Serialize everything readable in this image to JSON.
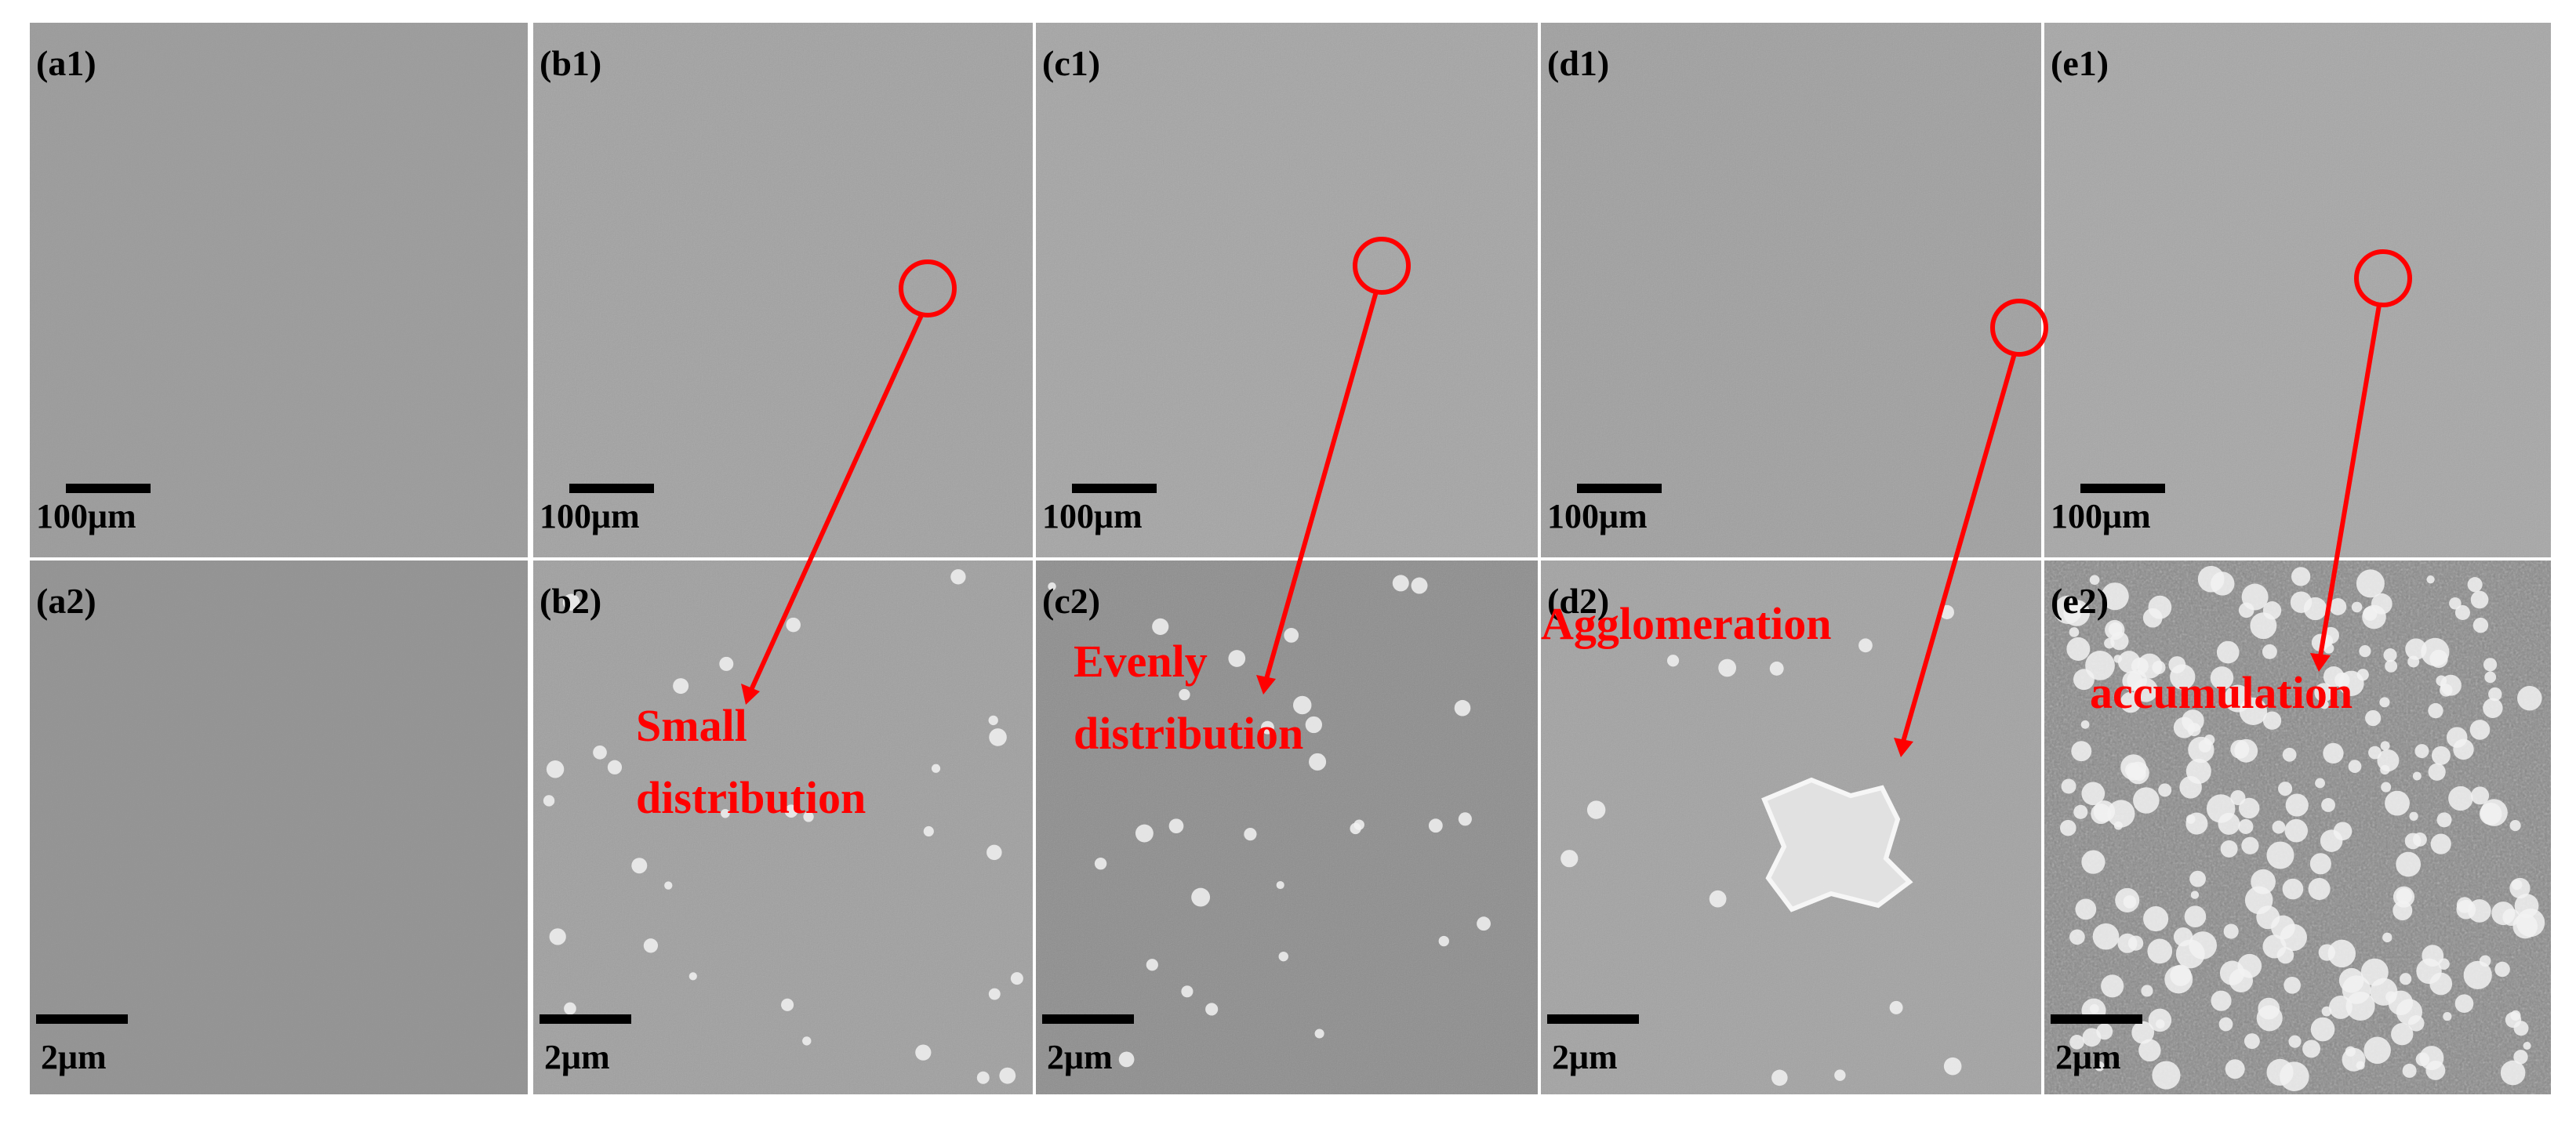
{
  "panels": [
    {
      "label": "(a1)",
      "scale_bar": "100μm"
    },
    {
      "label": "(b1)",
      "scale_bar": "100μm"
    },
    {
      "label": "(c1)",
      "scale_bar": "100μm"
    },
    {
      "label": "(d1)",
      "scale_bar": "100μm"
    },
    {
      "label": "(e1)",
      "scale_bar": "100μm"
    },
    {
      "label": "(a2)",
      "scale_bar": "2μm"
    },
    {
      "label": "(b2)",
      "scale_bar": "2μm"
    },
    {
      "label": "(c2)",
      "scale_bar": "2μm"
    },
    {
      "label": "(d2)",
      "scale_bar": "2μm"
    },
    {
      "label": "(e2)",
      "scale_bar": "2μm"
    }
  ],
  "annotations": [
    {
      "lines": [
        "Small",
        "distribution"
      ]
    },
    {
      "lines": [
        "Evenly",
        "distribution"
      ]
    },
    {
      "lines": [
        "Agglomeration"
      ]
    },
    {
      "lines": [
        "accumulation"
      ]
    }
  ]
}
